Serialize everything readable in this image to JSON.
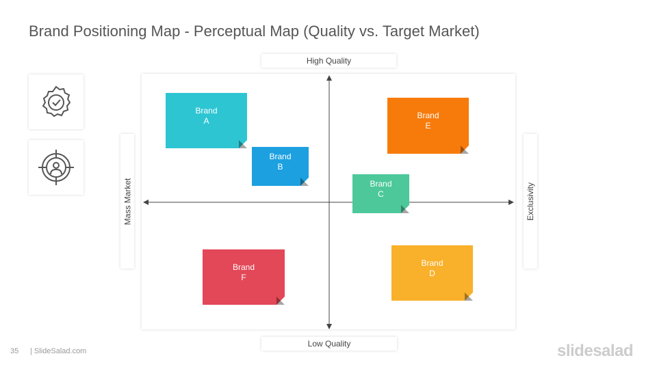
{
  "header": {
    "title": "Brand Positioning Map - Perceptual Map (Quality vs. Target Market)"
  },
  "map": {
    "axes": {
      "top": "High Quality",
      "bottom": "Low Quality",
      "left": "Mass Market",
      "right": "Exclusivity"
    },
    "brands": [
      {
        "lines": [
          "Brand",
          "A"
        ],
        "color": "#2ec5d3"
      },
      {
        "lines": [
          "Brand",
          "B"
        ],
        "color": "#1ca0e0"
      },
      {
        "lines": [
          "Brand",
          "E"
        ],
        "color": "#f77b0b"
      },
      {
        "lines": [
          "Brand",
          "C"
        ],
        "color": "#4dc89b"
      },
      {
        "lines": [
          "Brand",
          "F"
        ],
        "color": "#e24857"
      },
      {
        "lines": [
          "Brand",
          "D"
        ],
        "color": "#f9b02a"
      }
    ]
  },
  "footer": {
    "page": "35",
    "site": "| SlideSalad.com",
    "logo": "slidesalad"
  }
}
